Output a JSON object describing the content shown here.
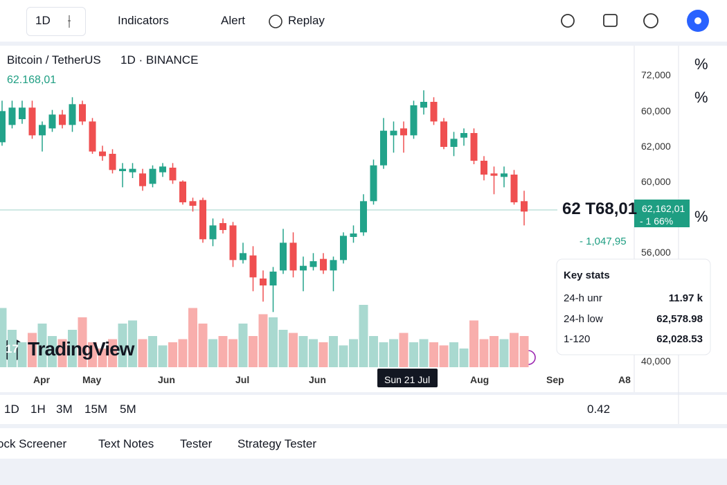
{
  "toolbar": {
    "interval": "1D",
    "buttons": [
      "Indicators",
      "Alert",
      "Replay"
    ]
  },
  "header": {
    "symbol": "Bitcoin / TetherUS",
    "interval": "1D · BINANCE",
    "price": "62.168,01"
  },
  "price_axis": [
    "72,000",
    "60,000",
    "62,000",
    "60,000",
    "56,000",
    "40,000"
  ],
  "last_price": {
    "big": "62 T68,01",
    "badge": "62,162,01",
    "badge_change": "- 1 66%",
    "change": "- 1,047,95"
  },
  "key_stats": {
    "title": "Key stats",
    "rows": [
      [
        "24-h unr",
        "11.97 k"
      ],
      [
        "24-h low",
        "62,578.98"
      ],
      [
        "1-120",
        "62,028.53"
      ]
    ]
  },
  "time_axis": [
    "Apr",
    "May",
    "Jun",
    "Jul",
    "Jun",
    "Sun 21 Jul",
    "Aug",
    "Sep",
    "A8"
  ],
  "logo": {
    "badge": "17",
    "text": "TradingView"
  },
  "sidebar": [
    "%",
    "%",
    "%"
  ],
  "ranges": [
    "1D",
    "1H",
    "3M",
    "15M",
    "5M"
  ],
  "scale_value": "0.42",
  "tabs": [
    "ock Screener",
    "Text Notes",
    "Tester",
    "Strategy Tester"
  ],
  "chart": {
    "type": "candlestick",
    "ylim": [
      50000,
      74000
    ],
    "volume_ylim": [
      0,
      100
    ],
    "up_color": "#22a38a",
    "down_color": "#ef4f50",
    "up_volume_color": "#a9d9d0",
    "down_volume_color": "#f8aeac",
    "candles": [
      {
        "o": 66300,
        "h": 69900,
        "l": 66000,
        "c": 69000
      },
      {
        "o": 67800,
        "h": 69900,
        "l": 67500,
        "c": 69300
      },
      {
        "o": 68300,
        "h": 69900,
        "l": 67900,
        "c": 69300
      },
      {
        "o": 69300,
        "h": 69900,
        "l": 66600,
        "c": 66900
      },
      {
        "o": 66900,
        "h": 68100,
        "l": 65500,
        "c": 67800
      },
      {
        "o": 67500,
        "h": 69100,
        "l": 67200,
        "c": 68700
      },
      {
        "o": 68700,
        "h": 69100,
        "l": 67500,
        "c": 67800
      },
      {
        "o": 67800,
        "h": 70200,
        "l": 67200,
        "c": 69600
      },
      {
        "o": 69600,
        "h": 69900,
        "l": 67800,
        "c": 68100
      },
      {
        "o": 68100,
        "h": 68400,
        "l": 65300,
        "c": 65500
      },
      {
        "o": 65500,
        "h": 66000,
        "l": 64700,
        "c": 65100
      },
      {
        "o": 65300,
        "h": 65700,
        "l": 63600,
        "c": 63900
      },
      {
        "o": 63800,
        "h": 64500,
        "l": 62400,
        "c": 64000
      },
      {
        "o": 63700,
        "h": 64500,
        "l": 63200,
        "c": 64000
      },
      {
        "o": 63600,
        "h": 64000,
        "l": 62100,
        "c": 62500
      },
      {
        "o": 62700,
        "h": 64300,
        "l": 62400,
        "c": 64000
      },
      {
        "o": 63700,
        "h": 64500,
        "l": 63300,
        "c": 64200
      },
      {
        "o": 64100,
        "h": 64500,
        "l": 62700,
        "c": 63000
      },
      {
        "o": 62900,
        "h": 63000,
        "l": 60900,
        "c": 61100
      },
      {
        "o": 61200,
        "h": 61500,
        "l": 60300,
        "c": 60800
      },
      {
        "o": 61300,
        "h": 61500,
        "l": 57600,
        "c": 57900
      },
      {
        "o": 57900,
        "h": 59700,
        "l": 57300,
        "c": 59100
      },
      {
        "o": 59300,
        "h": 59700,
        "l": 58400,
        "c": 58700
      },
      {
        "o": 59100,
        "h": 59400,
        "l": 55500,
        "c": 56100
      },
      {
        "o": 56100,
        "h": 57600,
        "l": 55800,
        "c": 56700
      },
      {
        "o": 56500,
        "h": 57300,
        "l": 53400,
        "c": 54600
      },
      {
        "o": 54500,
        "h": 55200,
        "l": 52500,
        "c": 53900
      },
      {
        "o": 53900,
        "h": 55500,
        "l": 51600,
        "c": 55100
      },
      {
        "o": 55200,
        "h": 58800,
        "l": 54900,
        "c": 57600
      },
      {
        "o": 57600,
        "h": 58500,
        "l": 54600,
        "c": 55200
      },
      {
        "o": 55200,
        "h": 56400,
        "l": 53400,
        "c": 55600
      },
      {
        "o": 55500,
        "h": 56700,
        "l": 55200,
        "c": 56000
      },
      {
        "o": 56200,
        "h": 56700,
        "l": 54900,
        "c": 55200
      },
      {
        "o": 55200,
        "h": 56400,
        "l": 53400,
        "c": 56100
      },
      {
        "o": 56100,
        "h": 58500,
        "l": 55800,
        "c": 58200
      },
      {
        "o": 58100,
        "h": 59100,
        "l": 57600,
        "c": 58400
      },
      {
        "o": 58500,
        "h": 61800,
        "l": 58200,
        "c": 61200
      },
      {
        "o": 61200,
        "h": 64800,
        "l": 60900,
        "c": 64300
      },
      {
        "o": 64300,
        "h": 68400,
        "l": 64000,
        "c": 67300
      },
      {
        "o": 66900,
        "h": 68100,
        "l": 65400,
        "c": 67300
      },
      {
        "o": 67500,
        "h": 68100,
        "l": 65400,
        "c": 66900
      },
      {
        "o": 66900,
        "h": 69900,
        "l": 66600,
        "c": 69500
      },
      {
        "o": 69300,
        "h": 70800,
        "l": 68700,
        "c": 69800
      },
      {
        "o": 69800,
        "h": 70200,
        "l": 67800,
        "c": 68100
      },
      {
        "o": 68100,
        "h": 68400,
        "l": 65700,
        "c": 65900
      },
      {
        "o": 65900,
        "h": 67200,
        "l": 65100,
        "c": 66600
      },
      {
        "o": 66700,
        "h": 67500,
        "l": 66000,
        "c": 67100
      },
      {
        "o": 67100,
        "h": 67500,
        "l": 64400,
        "c": 64700
      },
      {
        "o": 64700,
        "h": 65100,
        "l": 63000,
        "c": 63500
      },
      {
        "o": 63600,
        "h": 64200,
        "l": 61800,
        "c": 63400
      },
      {
        "o": 63300,
        "h": 64200,
        "l": 62400,
        "c": 63600
      },
      {
        "o": 63500,
        "h": 63900,
        "l": 60900,
        "c": 61100
      },
      {
        "o": 61200,
        "h": 62100,
        "l": 59100,
        "c": 60300
      }
    ],
    "volume": [
      95,
      60,
      40,
      55,
      70,
      50,
      45,
      60,
      80,
      40,
      30,
      45,
      70,
      75,
      45,
      50,
      35,
      40,
      45,
      95,
      70,
      45,
      50,
      45,
      70,
      50,
      85,
      80,
      60,
      55,
      50,
      45,
      40,
      50,
      35,
      45,
      100,
      50,
      40,
      45,
      55,
      40,
      45,
      40,
      35,
      40,
      30,
      75,
      45,
      50,
      45,
      55,
      50
    ]
  }
}
